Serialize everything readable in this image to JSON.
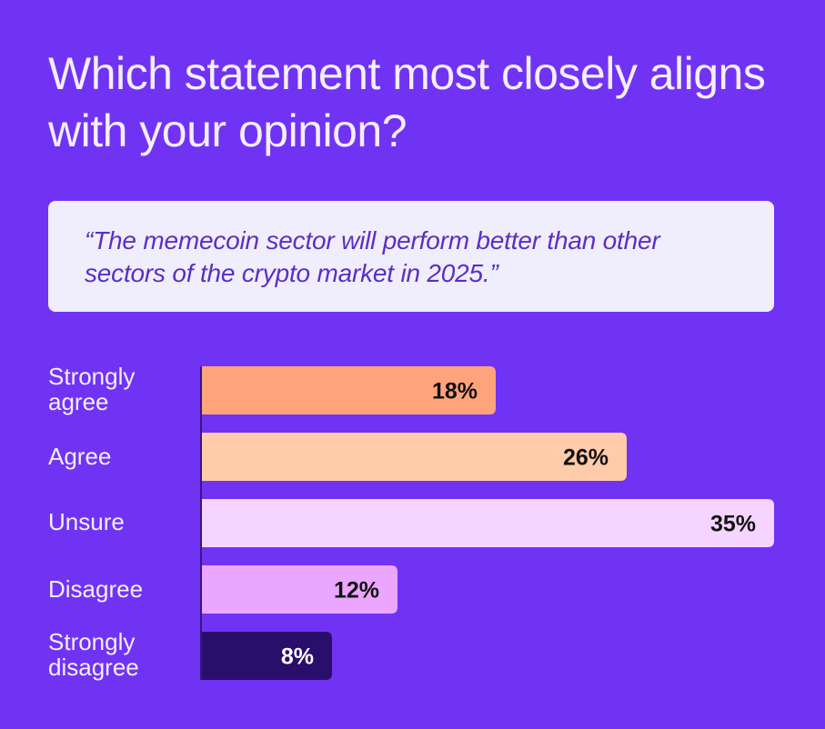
{
  "chart_data": {
    "type": "bar",
    "orientation": "horizontal",
    "title": "Which statement most closely aligns with your opinion?",
    "subtitle": "“The memecoin sector will perform better than other sectors of the crypto market in 2025.”",
    "categories": [
      "Strongly agree",
      "Agree",
      "Unsure",
      "Disagree",
      "Strongly disagree"
    ],
    "values": [
      18,
      26,
      35,
      12,
      8
    ],
    "value_labels": [
      "18%",
      "26%",
      "35%",
      "12%",
      "8%"
    ],
    "unit": "%",
    "xlim": [
      0,
      35
    ],
    "grid": false,
    "legend": "none",
    "bar_colors": [
      "#ffa37c",
      "#ffcba8",
      "#f5d4ff",
      "#eba6ff",
      "#2a0e6b"
    ],
    "value_label_colors": [
      "#111111",
      "#111111",
      "#111111",
      "#111111",
      "#ffffff"
    ]
  },
  "colors": {
    "background": "#7133f3",
    "title_text": "#f3eefe",
    "quote_card": "#f0eefc",
    "quote_text": "#5a2fc4",
    "axis_line": "#3a1585"
  }
}
